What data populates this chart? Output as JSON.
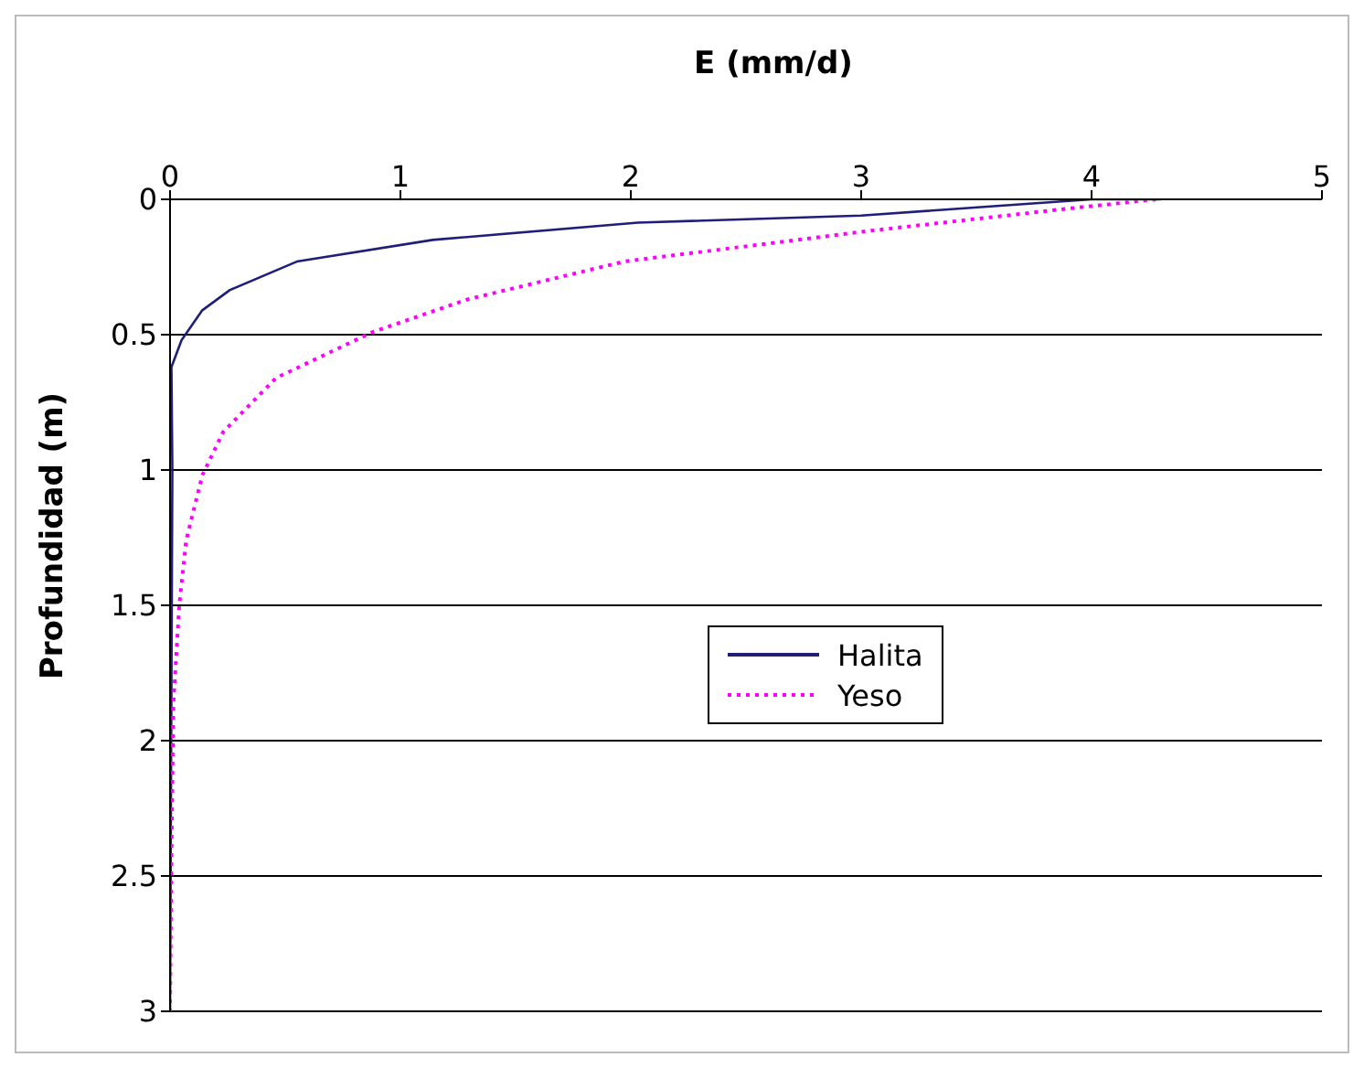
{
  "chart_data": {
    "type": "line",
    "xlabel": "E (mm/d)",
    "ylabel": "Profundidad (m)",
    "xlim": [
      0,
      5
    ],
    "xticks": [
      0,
      1,
      2,
      3,
      4,
      5
    ],
    "ylim": [
      3,
      0
    ],
    "yticks": [
      0,
      0.5,
      1,
      1.5,
      2,
      2.5,
      3
    ],
    "grid": "y",
    "legend": "center right",
    "marker": "none",
    "series": [
      {
        "name": "Halita",
        "color": "#1f1f7a",
        "line_style": "solid",
        "x": [
          4.3,
          4.0,
          3.0,
          2.03,
          1.14,
          0.55,
          0.26,
          0.14,
          0.05,
          0.006,
          0.01,
          0
        ],
        "values": [
          0,
          0,
          0.06,
          0.086,
          0.15,
          0.23,
          0.335,
          0.41,
          0.52,
          0.62,
          1.0,
          3
        ]
      },
      {
        "name": "Yeso",
        "color": "#ff00ff",
        "line_style": "dotted",
        "x": [
          4.28,
          3.9,
          3.0,
          1.97,
          1.29,
          0.88,
          0.46,
          0.23,
          0.14,
          0.07,
          0.04,
          0.014,
          0.005,
          0
        ],
        "values": [
          0,
          0.034,
          0.12,
          0.23,
          0.37,
          0.49,
          0.66,
          0.86,
          1.02,
          1.26,
          1.5,
          1.87,
          2.5,
          3
        ]
      }
    ]
  }
}
